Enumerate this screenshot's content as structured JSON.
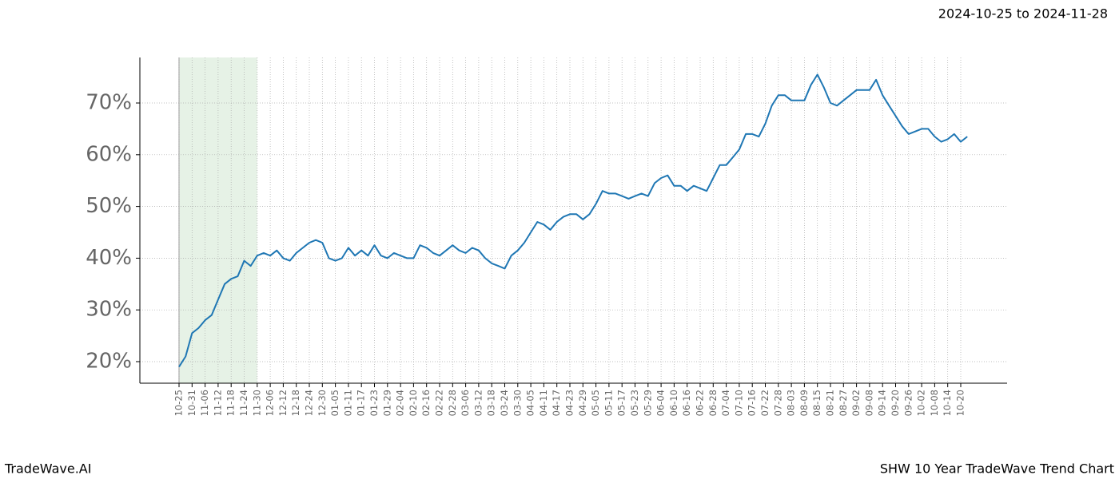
{
  "chart_data": {
    "type": "line",
    "subtitle": "2024-10-25 to 2024-11-28",
    "footer_left": "TradeWave.AI",
    "footer_right": "SHW 10 Year TradeWave Trend Chart",
    "categories": [
      "10-25",
      null,
      "10-31",
      null,
      "11-06",
      null,
      "11-12",
      null,
      "11-18",
      null,
      "11-24",
      null,
      "11-30",
      null,
      "12-06",
      null,
      "12-12",
      null,
      "12-18",
      null,
      "12-24",
      null,
      "12-30",
      null,
      "01-05",
      null,
      "01-11",
      null,
      "01-17",
      null,
      "01-23",
      null,
      "01-29",
      null,
      "02-04",
      null,
      "02-10",
      null,
      "02-16",
      null,
      "02-22",
      null,
      "02-28",
      null,
      "03-06",
      null,
      "03-12",
      null,
      "03-18",
      null,
      "03-24",
      null,
      "03-30",
      null,
      "04-05",
      null,
      "04-11",
      null,
      "04-17",
      null,
      "04-23",
      null,
      "04-29",
      null,
      "05-05",
      null,
      "05-11",
      null,
      "05-17",
      null,
      "05-23",
      null,
      "05-29",
      null,
      "06-04",
      null,
      "06-10",
      null,
      "06-16",
      null,
      "06-22",
      null,
      "06-28",
      null,
      "07-04",
      null,
      "07-10",
      null,
      "07-16",
      null,
      "07-22",
      null,
      "07-28",
      null,
      "08-03",
      null,
      "08-09",
      null,
      "08-15",
      null,
      "08-21",
      null,
      "08-27",
      null,
      "09-02",
      null,
      "09-08",
      null,
      "09-14",
      null,
      "09-20",
      null,
      "09-26",
      null,
      "10-02",
      null,
      "10-08",
      null,
      "10-14",
      null,
      "10-20",
      null
    ],
    "values": [
      19,
      21,
      25.5,
      26.5,
      28,
      29,
      32,
      35,
      36,
      36.5,
      39.5,
      38.5,
      40.5,
      41,
      40.5,
      41.5,
      40,
      39.5,
      41,
      42,
      43,
      43.5,
      43,
      40,
      39.5,
      40,
      42,
      40.5,
      41.5,
      40.5,
      42.5,
      40.5,
      40,
      41,
      40.5,
      40,
      40,
      42.5,
      42,
      41,
      40.5,
      41.5,
      42.5,
      41.5,
      41,
      42,
      41.5,
      40,
      39,
      38.5,
      38,
      40.5,
      41.5,
      43,
      45,
      47,
      46.5,
      45.5,
      47,
      48,
      48.5,
      48.5,
      47.5,
      48.5,
      50.5,
      53,
      52.5,
      52.5,
      52,
      51.5,
      52,
      52.5,
      52,
      54.5,
      55.5,
      56,
      54,
      54,
      53,
      54,
      53.5,
      53,
      55.5,
      58,
      58,
      59.5,
      61,
      64,
      64,
      63.5,
      66,
      69.5,
      71.5,
      71.5,
      70.5,
      70.5,
      70.5,
      73.5,
      75.5,
      73,
      70,
      69.5,
      70.5,
      71.5,
      72.5,
      72.5,
      72.5,
      74.5,
      71.5,
      69.5,
      67.5,
      65.5,
      64,
      64.5,
      65,
      65,
      63.5,
      62.5,
      63,
      64,
      62.5,
      63.5
    ],
    "color": "#1f77b4",
    "highlight": {
      "start": "10-25",
      "end": "11-30",
      "color": "#e6f2e6"
    },
    "ylim": [
      15.83,
      78.8
    ],
    "yticks": [
      {
        "value": 20,
        "label": "20%"
      },
      {
        "value": 30,
        "label": "30%"
      },
      {
        "value": 40,
        "label": "40%"
      },
      {
        "value": 50,
        "label": "50%"
      },
      {
        "value": 60,
        "label": "60%"
      },
      {
        "value": 70,
        "label": "70%"
      }
    ],
    "grid": true
  }
}
